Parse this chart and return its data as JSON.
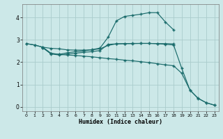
{
  "xlabel": "Humidex (Indice chaleur)",
  "background_color": "#cce8e8",
  "grid_color": "#aacccc",
  "line_color": "#1a6b6b",
  "xlim": [
    -0.5,
    23.5
  ],
  "ylim": [
    -0.2,
    4.6
  ],
  "xticks": [
    0,
    1,
    2,
    3,
    4,
    5,
    6,
    7,
    8,
    9,
    10,
    11,
    12,
    13,
    14,
    15,
    16,
    17,
    18,
    19,
    20,
    21,
    22,
    23
  ],
  "yticks": [
    0,
    1,
    2,
    3,
    4
  ],
  "line1_x": [
    0,
    1,
    2,
    3,
    4,
    5,
    6,
    7,
    8,
    9,
    10,
    11,
    12,
    13,
    14,
    15,
    16,
    17,
    18
  ],
  "line1_y": [
    2.83,
    2.77,
    2.67,
    2.62,
    2.6,
    2.55,
    2.54,
    2.54,
    2.55,
    2.6,
    2.75,
    2.82,
    2.83,
    2.84,
    2.84,
    2.84,
    2.83,
    2.83,
    2.82
  ],
  "line2_x": [
    2,
    3,
    4,
    5,
    6,
    7,
    8,
    9,
    10,
    11,
    12,
    13,
    14,
    15,
    16,
    17,
    18
  ],
  "line2_y": [
    2.65,
    2.38,
    2.35,
    2.42,
    2.47,
    2.5,
    2.56,
    2.63,
    3.12,
    3.85,
    4.05,
    4.1,
    4.15,
    4.22,
    4.22,
    3.8,
    3.45
  ],
  "line3_x": [
    2,
    3,
    4,
    5,
    6,
    7,
    8,
    9,
    10,
    11,
    12,
    13,
    14,
    15,
    16,
    17,
    18,
    19,
    20,
    21,
    22,
    23
  ],
  "line3_y": [
    2.65,
    2.37,
    2.32,
    2.36,
    2.4,
    2.44,
    2.47,
    2.52,
    2.8,
    2.82,
    2.83,
    2.83,
    2.84,
    2.84,
    2.83,
    2.8,
    2.77,
    1.72,
    0.75,
    0.37,
    0.18,
    0.07
  ],
  "line4_x": [
    0,
    1,
    2,
    3,
    4,
    5,
    6,
    7,
    8,
    9,
    10,
    11,
    12,
    13,
    14,
    15,
    16,
    17,
    18,
    19,
    20,
    21,
    22,
    23
  ],
  "line4_y": [
    2.83,
    2.77,
    2.67,
    2.4,
    2.35,
    2.32,
    2.3,
    2.27,
    2.24,
    2.2,
    2.16,
    2.13,
    2.09,
    2.06,
    2.02,
    1.98,
    1.93,
    1.88,
    1.84,
    1.5,
    0.75,
    0.38,
    0.18,
    0.07
  ]
}
